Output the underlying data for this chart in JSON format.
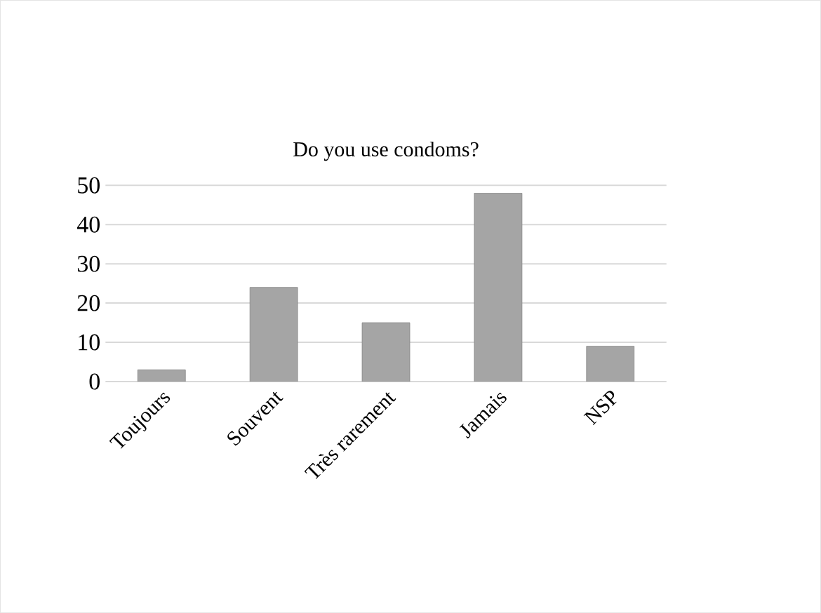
{
  "chart_data": {
    "type": "bar",
    "title": "Do you use condoms?",
    "categories": [
      "Toujours",
      "Souvent",
      "Très rarement",
      "Jamais",
      "NSP"
    ],
    "values": [
      3,
      24,
      15,
      48,
      9
    ],
    "color": "#a5a5a5",
    "ylim": [
      0,
      50
    ],
    "yticks": [
      0,
      10,
      20,
      30,
      40,
      50
    ],
    "grid": "y"
  }
}
